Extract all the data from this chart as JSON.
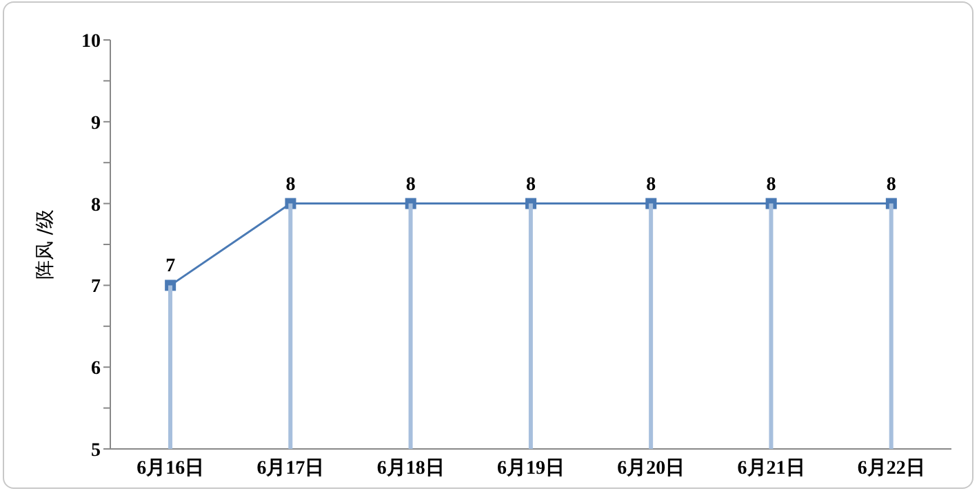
{
  "chart_data": {
    "type": "line",
    "ylabel": "阵风 /级",
    "categories": [
      "6月16日",
      "6月17日",
      "6月18日",
      "6月19日",
      "6月20日",
      "6月21日",
      "6月22日"
    ],
    "series": [
      {
        "type": "bar",
        "color": "#a7bfdd",
        "values": [
          7,
          8,
          8,
          8,
          8,
          8,
          8
        ]
      },
      {
        "color": "#4a7ab5",
        "values": [
          7,
          8,
          8,
          8,
          8,
          8,
          8
        ],
        "data_labels": true
      }
    ],
    "marker": "square",
    "ylim": [
      5,
      10
    ],
    "yticks": [
      5,
      {
        "value": 5.5,
        "label": null
      },
      6,
      {
        "value": 6.5,
        "label": null
      },
      7,
      {
        "value": 7.5,
        "label": null
      },
      8,
      {
        "value": 8.5,
        "label": null
      },
      9,
      {
        "value": 9.5,
        "label": null
      },
      10
    ]
  }
}
